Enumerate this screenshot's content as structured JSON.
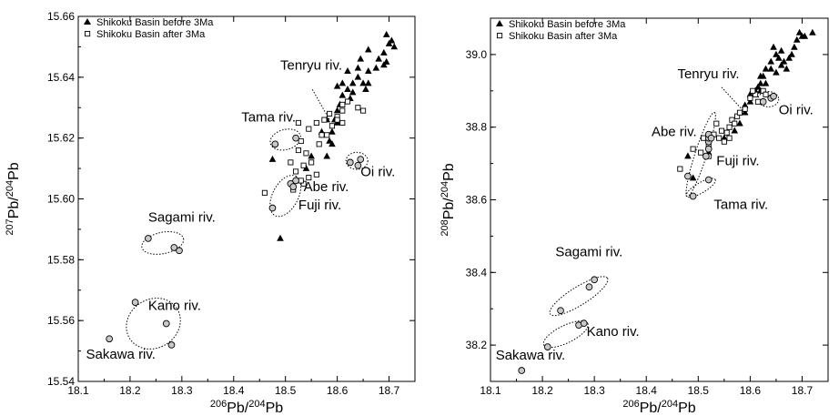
{
  "chart_data": [
    {
      "type": "scatter",
      "xlim": [
        18.1,
        18.75
      ],
      "ylim": [
        15.54,
        15.66
      ],
      "xticks": [
        "18.1",
        "18.2",
        "18.3",
        "18.4",
        "18.5",
        "18.6",
        "18.7"
      ],
      "yticks": [
        "15.54",
        "15.56",
        "15.58",
        "15.60",
        "15.62",
        "15.64",
        "15.66"
      ],
      "xlabel": {
        "base": "Pb/",
        "sup1": "206",
        "sup2": "204",
        "end": "Pb"
      },
      "ylabel": {
        "base": "Pb/",
        "sup1": "207",
        "sup2": "204",
        "end": "Pb"
      },
      "legend": {
        "placement": "top-left",
        "entries": [
          "Shikoku Basin before 3Ma",
          "Shikoku Basin after 3Ma"
        ]
      },
      "series": [
        {
          "name": "Shikoku Basin before 3Ma",
          "marker": "filled-triangle",
          "points": [
            [
              18.49,
              15.587
            ],
            [
              18.475,
              15.613
            ],
            [
              18.54,
              15.61
            ],
            [
              18.55,
              15.614
            ],
            [
              18.58,
              15.614
            ],
            [
              18.585,
              15.619
            ],
            [
              18.59,
              15.622
            ],
            [
              18.595,
              15.626
            ],
            [
              18.6,
              15.629
            ],
            [
              18.605,
              15.631
            ],
            [
              18.61,
              15.634
            ],
            [
              18.62,
              15.636
            ],
            [
              18.6,
              15.637
            ],
            [
              18.63,
              15.638
            ],
            [
              18.625,
              15.633
            ],
            [
              18.64,
              15.64
            ],
            [
              18.65,
              15.638
            ],
            [
              18.655,
              15.636
            ],
            [
              18.66,
              15.638
            ],
            [
              18.66,
              15.642
            ],
            [
              18.64,
              15.643
            ],
            [
              18.62,
              15.642
            ],
            [
              18.61,
              15.638
            ],
            [
              18.63,
              15.635
            ],
            [
              18.645,
              15.646
            ],
            [
              18.66,
              15.649
            ],
            [
              18.68,
              15.646
            ],
            [
              18.69,
              15.648
            ],
            [
              18.7,
              15.651
            ],
            [
              18.71,
              15.65
            ],
            [
              18.695,
              15.654
            ],
            [
              18.705,
              15.652
            ],
            [
              18.695,
              15.645
            ],
            [
              18.69,
              15.644
            ],
            [
              18.675,
              15.643
            ],
            [
              18.58,
              15.626
            ],
            [
              18.59,
              15.618
            ],
            [
              18.57,
              15.622
            ],
            [
              18.6,
              15.625
            ],
            [
              18.52,
              15.606
            ]
          ]
        },
        {
          "name": "Shikoku Basin after 3Ma",
          "marker": "open-square",
          "points": [
            [
              18.46,
              15.602
            ],
            [
              18.52,
              15.609
            ],
            [
              18.535,
              15.611
            ],
            [
              18.54,
              15.615
            ],
            [
              18.525,
              15.616
            ],
            [
              18.53,
              15.619
            ],
            [
              18.545,
              15.623
            ],
            [
              18.56,
              15.625
            ],
            [
              18.57,
              15.621
            ],
            [
              18.575,
              15.626
            ],
            [
              18.59,
              15.624
            ],
            [
              18.6,
              15.627
            ],
            [
              18.61,
              15.629
            ],
            [
              18.62,
              15.632
            ],
            [
              18.61,
              15.631
            ],
            [
              18.64,
              15.63
            ],
            [
              18.6,
              15.626
            ],
            [
              18.585,
              15.628
            ],
            [
              18.55,
              15.612
            ],
            [
              18.535,
              15.605
            ],
            [
              18.515,
              15.603
            ],
            [
              18.56,
              15.608
            ],
            [
              18.545,
              15.607
            ],
            [
              18.525,
              15.625
            ],
            [
              18.58,
              15.621
            ],
            [
              18.61,
              15.625
            ],
            [
              18.65,
              15.629
            ],
            [
              18.565,
              15.618
            ],
            [
              18.51,
              15.612
            ],
            [
              18.53,
              15.606
            ]
          ]
        },
        {
          "name": "",
          "marker": "open-circle",
          "points": [
            [
              18.16,
              15.554
            ],
            [
              18.21,
              15.566
            ],
            [
              18.27,
              15.559
            ],
            [
              18.28,
              15.552
            ],
            [
              18.235,
              15.587
            ],
            [
              18.285,
              15.584
            ],
            [
              18.295,
              15.583
            ],
            [
              18.475,
              15.597
            ],
            [
              18.51,
              15.605
            ],
            [
              18.515,
              15.604
            ],
            [
              18.52,
              15.606
            ],
            [
              18.48,
              15.618
            ],
            [
              18.52,
              15.62
            ],
            [
              18.625,
              15.612
            ],
            [
              18.64,
              15.611
            ],
            [
              18.645,
              15.613
            ]
          ]
        }
      ],
      "annotations": [
        {
          "text": "Tenryu riv.",
          "x": 18.49,
          "y": 15.6425,
          "leader": [
            [
              18.552,
              15.636
            ],
            [
              18.585,
              15.626
            ]
          ]
        },
        {
          "text": "Tama riv.",
          "x": 18.415,
          "y": 15.6255
        },
        {
          "text": "Oi riv.",
          "x": 18.645,
          "y": 15.6075
        },
        {
          "text": "Abe riv.",
          "x": 18.535,
          "y": 15.6025
        },
        {
          "text": "Fuji riv.",
          "x": 18.525,
          "y": 15.5965
        },
        {
          "text": "Sagami riv.",
          "x": 18.235,
          "y": 15.5925
        },
        {
          "text": "Kano riv.",
          "x": 18.235,
          "y": 15.5635
        },
        {
          "text": "Sakawa riv.",
          "x": 18.115,
          "y": 15.5475
        }
      ],
      "ellipses": [
        {
          "cx": 18.263,
          "cy": 15.5855,
          "rx": 0.041,
          "ry": 0.0035,
          "angle": -12
        },
        {
          "cx": 18.245,
          "cy": 15.559,
          "rx": 0.054,
          "ry": 0.008,
          "angle": -32
        },
        {
          "cx": 18.5,
          "cy": 15.6195,
          "rx": 0.03,
          "ry": 0.0033,
          "angle": -15
        },
        {
          "cx": 18.638,
          "cy": 15.6125,
          "rx": 0.021,
          "ry": 0.0028,
          "angle": 0
        },
        {
          "cx": 18.5,
          "cy": 15.601,
          "rx": 0.043,
          "ry": 0.0042,
          "angle": -62
        }
      ]
    },
    {
      "type": "scatter",
      "xlim": [
        18.1,
        18.75
      ],
      "ylim": [
        38.1,
        39.1
      ],
      "xticks": [
        "18.1",
        "18.2",
        "18.3",
        "18.4",
        "18.5",
        "18.6",
        "18.7"
      ],
      "yticks": [
        "38.2",
        "38.4",
        "38.6",
        "38.8",
        "39.0"
      ],
      "xlabel": {
        "base": "Pb/",
        "sup1": "206",
        "sup2": "204",
        "end": "Pb"
      },
      "ylabel": {
        "base": "Pb/",
        "sup1": "208",
        "sup2": "204",
        "end": "Pb"
      },
      "legend": {
        "placement": "top-left",
        "entries": [
          "Shikoku Basin before 3Ma",
          "Shikoku Basin after 3Ma"
        ]
      },
      "series": [
        {
          "name": "Shikoku Basin before 3Ma",
          "marker": "filled-triangle",
          "points": [
            [
              18.49,
              38.66
            ],
            [
              18.52,
              38.73
            ],
            [
              18.55,
              38.77
            ],
            [
              18.58,
              38.81
            ],
            [
              18.59,
              38.84
            ],
            [
              18.6,
              38.87
            ],
            [
              18.61,
              38.9
            ],
            [
              18.615,
              38.91
            ],
            [
              18.62,
              38.92
            ],
            [
              18.625,
              38.94
            ],
            [
              18.63,
              38.96
            ],
            [
              18.64,
              38.98
            ],
            [
              18.65,
              39.0
            ],
            [
              18.655,
              38.99
            ],
            [
              18.66,
              38.97
            ],
            [
              18.67,
              38.96
            ],
            [
              18.68,
              39.0
            ],
            [
              18.69,
              39.04
            ],
            [
              18.7,
              39.05
            ],
            [
              18.695,
              39.06
            ],
            [
              18.705,
              39.05
            ],
            [
              18.72,
              39.06
            ],
            [
              18.64,
              38.96
            ],
            [
              18.66,
              39.01
            ],
            [
              18.675,
              38.99
            ],
            [
              18.685,
              39.02
            ],
            [
              18.63,
              38.92
            ],
            [
              18.6,
              38.89
            ],
            [
              18.62,
              38.94
            ],
            [
              18.645,
              39.02
            ],
            [
              18.59,
              38.86
            ],
            [
              18.57,
              38.79
            ],
            [
              18.48,
              38.72
            ],
            [
              18.62,
              38.9
            ],
            [
              18.65,
              38.95
            ],
            [
              18.665,
              38.98
            ]
          ]
        },
        {
          "name": "Shikoku Basin after 3Ma",
          "marker": "open-square",
          "points": [
            [
              18.465,
              38.685
            ],
            [
              18.49,
              38.74
            ],
            [
              18.505,
              38.73
            ],
            [
              18.52,
              38.75
            ],
            [
              18.53,
              38.78
            ],
            [
              18.535,
              38.81
            ],
            [
              18.545,
              38.79
            ],
            [
              18.55,
              38.76
            ],
            [
              18.56,
              38.8
            ],
            [
              18.565,
              38.82
            ],
            [
              18.57,
              38.81
            ],
            [
              18.575,
              38.83
            ],
            [
              18.58,
              38.84
            ],
            [
              18.59,
              38.85
            ],
            [
              18.6,
              38.88
            ],
            [
              18.61,
              38.89
            ],
            [
              18.615,
              38.87
            ],
            [
              18.625,
              38.9
            ],
            [
              18.63,
              38.89
            ],
            [
              18.605,
              38.9
            ],
            [
              18.56,
              38.77
            ],
            [
              18.54,
              38.77
            ],
            [
              18.51,
              38.77
            ],
            [
              18.52,
              38.72
            ],
            [
              18.555,
              38.785
            ]
          ]
        },
        {
          "name": "",
          "marker": "open-circle",
          "points": [
            [
              18.16,
              38.13
            ],
            [
              18.21,
              38.195
            ],
            [
              18.27,
              38.255
            ],
            [
              18.28,
              38.26
            ],
            [
              18.235,
              38.295
            ],
            [
              18.29,
              38.36
            ],
            [
              18.3,
              38.38
            ],
            [
              18.48,
              38.665
            ],
            [
              18.515,
              38.72
            ],
            [
              18.52,
              38.74
            ],
            [
              18.52,
              38.76
            ],
            [
              18.52,
              38.77
            ],
            [
              18.52,
              38.78
            ],
            [
              18.525,
              38.77
            ],
            [
              18.49,
              38.61
            ],
            [
              18.52,
              38.655
            ],
            [
              18.625,
              38.87
            ],
            [
              18.64,
              38.88
            ],
            [
              18.645,
              38.885
            ]
          ]
        }
      ],
      "annotations": [
        {
          "text": "Tenryu riv.",
          "x": 18.46,
          "y": 38.935,
          "leader": [
            [
              18.545,
              38.91
            ],
            [
              18.59,
              38.84
            ]
          ]
        },
        {
          "text": "Oi riv.",
          "x": 18.655,
          "y": 38.835
        },
        {
          "text": "Abe riv.",
          "x": 18.41,
          "y": 38.775
        },
        {
          "text": "Fuji riv.",
          "x": 18.535,
          "y": 38.695
        },
        {
          "text": "Tama riv.",
          "x": 18.53,
          "y": 38.575
        },
        {
          "text": "Sagami riv.",
          "x": 18.225,
          "y": 38.445
        },
        {
          "text": "Kano riv.",
          "x": 18.285,
          "y": 38.225
        },
        {
          "text": "Sakawa riv.",
          "x": 18.11,
          "y": 38.16
        }
      ],
      "ellipses": [
        {
          "cx": 18.27,
          "cy": 38.335,
          "rx": 0.065,
          "ry": 0.025,
          "angle": -32
        },
        {
          "cx": 18.245,
          "cy": 38.23,
          "rx": 0.047,
          "ry": 0.024,
          "angle": -26
        },
        {
          "cx": 18.635,
          "cy": 38.877,
          "rx": 0.02,
          "ry": 0.021,
          "angle": 0
        },
        {
          "cx": 18.505,
          "cy": 38.725,
          "rx": 0.085,
          "ry": 0.016,
          "angle": -72
        },
        {
          "cx": 18.505,
          "cy": 38.633,
          "rx": 0.032,
          "ry": 0.014,
          "angle": -30
        }
      ]
    }
  ]
}
